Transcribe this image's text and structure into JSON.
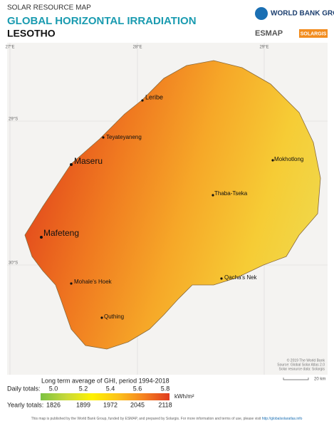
{
  "header": {
    "category": "SOLAR RESOURCE MAP",
    "title": "GLOBAL HORIZONTAL IRRADIATION",
    "country": "LESOTHO"
  },
  "logos": {
    "world_bank": "WORLD BANK GROUP",
    "esmap": "ESMAP",
    "solargis": "SOLARGIS"
  },
  "map": {
    "grid_labels": [
      "27°E",
      "28°E",
      "29°E",
      "29°S",
      "30°S"
    ],
    "cities": [
      "Leribe",
      "Teyateyaneng",
      "Maseru",
      "Mokhotlong",
      "Thaba-Tseka",
      "Mafeteng",
      "Mohale's Hoek",
      "Qacha's Nek",
      "Quthing"
    ],
    "credits": [
      "© 2019 The World Bank",
      "Source: Global Solar Atlas 2.0",
      "Solar resource data: Solargis"
    ],
    "scale": "20 km"
  },
  "legend": {
    "caption": "Long term average of GHI, period 1994-2018",
    "daily_label": "Daily totals:",
    "daily": [
      "5.0",
      "5.2",
      "5.4",
      "5.6",
      "5.8"
    ],
    "unit": "kWh/m²",
    "yearly_label": "Yearly totals:",
    "yearly": [
      1826,
      1899,
      1972,
      2045,
      2118
    ]
  },
  "footer": {
    "text": "This map is published by the World Bank Group, funded by ESMAP, and prepared by Solargis. For more information and terms of use, please visit",
    "link": "http://globalsolaratlas.info"
  }
}
